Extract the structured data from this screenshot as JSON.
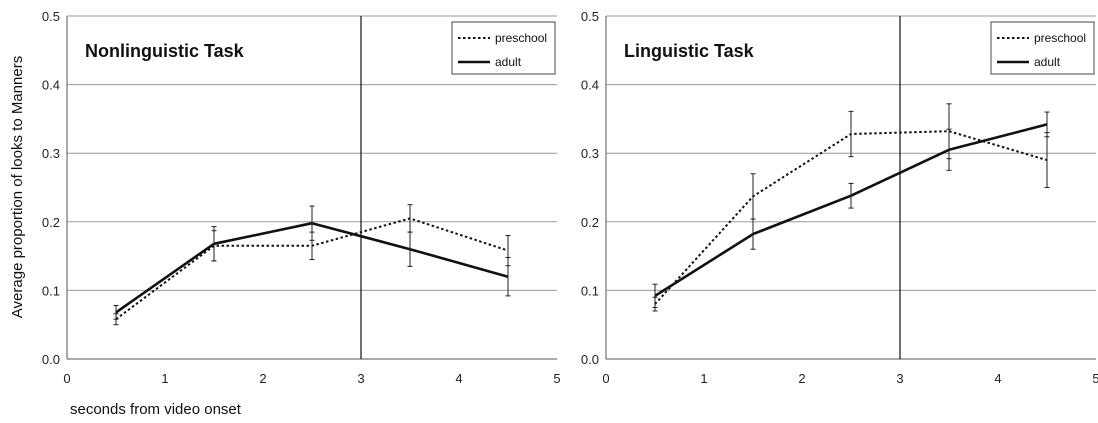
{
  "shared": {
    "ylabel": "Average proportion of looks to Manners",
    "xlabel": "seconds from video onset"
  },
  "chart_data": [
    {
      "type": "line",
      "title": "Nonlinguistic Task",
      "xlim": [
        0,
        5
      ],
      "ylim": [
        0,
        0.5
      ],
      "x_ticks": [
        "0",
        "1",
        "2",
        "3",
        "4",
        "5"
      ],
      "y_ticks": [
        "0.0",
        "0.1",
        "0.2",
        "0.3",
        "0.4",
        "0.5"
      ],
      "grid": "horizontal",
      "legend_position": "top-right",
      "reference_line_x": 3,
      "x": [
        0.5,
        1.5,
        2.5,
        3.5,
        4.5
      ],
      "series": [
        {
          "name": "preschool",
          "style": "dotted",
          "values": [
            0.058,
            0.165,
            0.165,
            0.205,
            0.158
          ],
          "errors": [
            0.008,
            0.022,
            0.02,
            0.02,
            0.022
          ]
        },
        {
          "name": "adult",
          "style": "solid",
          "values": [
            0.068,
            0.168,
            0.198,
            0.16,
            0.12
          ],
          "errors": [
            0.01,
            0.025,
            0.025,
            0.025,
            0.028
          ]
        }
      ]
    },
    {
      "type": "line",
      "title": "Linguistic Task",
      "xlim": [
        0,
        5
      ],
      "ylim": [
        0,
        0.5
      ],
      "x_ticks": [
        "0",
        "1",
        "2",
        "3",
        "4",
        "5"
      ],
      "y_ticks": [
        "0.0",
        "0.1",
        "0.2",
        "0.3",
        "0.4",
        "0.5"
      ],
      "grid": "horizontal",
      "legend_position": "top-right",
      "reference_line_x": 3,
      "x": [
        0.5,
        1.5,
        2.5,
        3.5,
        4.5
      ],
      "series": [
        {
          "name": "preschool",
          "style": "dotted",
          "values": [
            0.08,
            0.237,
            0.328,
            0.332,
            0.29
          ],
          "errors": [
            0.01,
            0.033,
            0.033,
            0.04,
            0.04
          ]
        },
        {
          "name": "adult",
          "style": "solid",
          "values": [
            0.092,
            0.182,
            0.238,
            0.305,
            0.342
          ],
          "errors": [
            0.017,
            0.022,
            0.018,
            0.03,
            0.018
          ]
        }
      ]
    }
  ]
}
